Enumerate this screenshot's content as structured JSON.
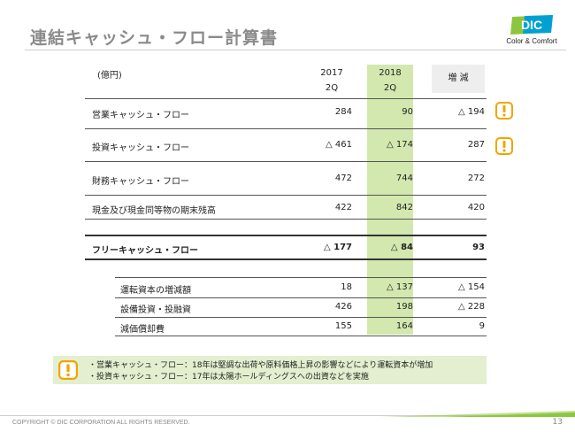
{
  "title": "連結キャッシュ・フロー計算書",
  "logo": {
    "mark": "DIC",
    "tagline": "Color & Comfort"
  },
  "table": {
    "unit": "(億円)",
    "col_2017": {
      "year": "2017",
      "q": "2Q"
    },
    "col_2018": {
      "year": "2018",
      "q": "2Q"
    },
    "col_change": "増 減",
    "rows": [
      {
        "label": "営業キャッシュ・フロー",
        "v2017": "284",
        "v2018": "90",
        "change": "△ 194"
      },
      {
        "label": "投資キャッシュ・フロー",
        "v2017": "△ 461",
        "v2018": "△ 174",
        "change": "287"
      },
      {
        "label": "財務キャッシュ・フロー",
        "v2017": "472",
        "v2018": "744",
        "change": "272"
      },
      {
        "label": "現金及び現金同等物の期末残高",
        "v2017": "422",
        "v2018": "842",
        "change": "420"
      }
    ],
    "fcf": {
      "label": "フリーキャッシュ・フロー",
      "v2017": "△ 177",
      "v2018": "△ 84",
      "change": "93"
    },
    "sub_rows": [
      {
        "label": "運転資本の増減額",
        "v2017": "18",
        "v2018": "△ 137",
        "change": "△ 154"
      },
      {
        "label": "設備投資・投融資",
        "v2017": "426",
        "v2018": "198",
        "change": "△ 228"
      },
      {
        "label": "減価償却費",
        "v2017": "155",
        "v2018": "164",
        "change": "9"
      }
    ]
  },
  "notes": [
    "・営業キャッシュ・フロー：18年は堅調な出荷や原料価格上昇の影響などにより運転資本が増加",
    "・投資キャッシュ・フロー：17年は太陽ホールディングスへの出資などを実施"
  ],
  "footer": {
    "copyright": "COPYRIGHT © DIC CORPORATION ALL RIGHTS RESERVED.",
    "page": "13"
  },
  "colors": {
    "highlight": "#d2e8ae",
    "note_bg": "#e3efcf",
    "warning": "#f0a500",
    "brand_green": "#8cc63f",
    "brand_blue": "#00a0d2"
  },
  "icons": {
    "warning": "warning-icon"
  }
}
